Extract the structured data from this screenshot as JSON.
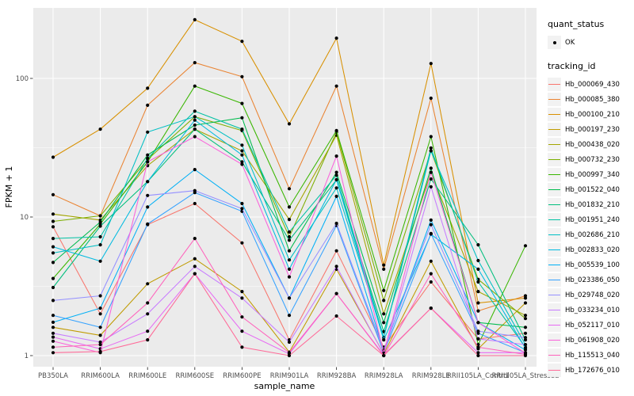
{
  "chart_data": {
    "type": "line",
    "title": "",
    "xlabel": "sample_name",
    "ylabel": "FPKM + 1",
    "y_scale": "log10",
    "ylim": [
      1,
      265
    ],
    "y_ticks": [
      1,
      10,
      100
    ],
    "y_minor_ticks": [
      3.1623,
      31.623
    ],
    "grid": "on",
    "legend_position": "right",
    "legend": {
      "quant_status": {
        "title": "quant_status",
        "items": [
          {
            "label": "OK",
            "marker": "point",
            "color": "#000000"
          }
        ]
      },
      "tracking_id": {
        "title": "tracking_id"
      }
    },
    "categories": [
      "PB350LA",
      "RRIM600LA",
      "RRIM600LE",
      "RRIM600SE",
      "RRIM600PE",
      "RRIM901LA",
      "RRIM928BA",
      "RRIM928LA",
      "RRIM928LE",
      "RRII105LA_Control",
      "RRII105LA_Stressed"
    ],
    "series": [
      {
        "name": "Hb_000069_430",
        "color": "#F8766D",
        "values": [
          8.5,
          2.0,
          8.8,
          12.5,
          6.5,
          1.3,
          5.7,
          1.15,
          3.4,
          1.32,
          1.45
        ]
      },
      {
        "name": "Hb_000085_380",
        "color": "#EA8331",
        "values": [
          14.5,
          10.2,
          64,
          130,
          103,
          16,
          88,
          4.2,
          72,
          2.1,
          2.7
        ]
      },
      {
        "name": "Hb_000100_210",
        "color": "#D89000",
        "values": [
          27,
          43,
          85,
          265,
          185,
          47,
          195,
          4.5,
          128,
          2.4,
          2.6
        ]
      },
      {
        "name": "Hb_000197_230",
        "color": "#C09B00",
        "values": [
          1.6,
          1.4,
          3.3,
          5.0,
          2.9,
          1.06,
          4.2,
          1.03,
          4.8,
          1.12,
          2.4
        ]
      },
      {
        "name": "Hb_000438_020",
        "color": "#A3A500",
        "values": [
          10.5,
          9.5,
          23.5,
          43,
          30,
          9.6,
          39,
          2.0,
          21,
          2.9,
          1.95
        ]
      },
      {
        "name": "Hb_000732_230",
        "color": "#7CAE00",
        "values": [
          9.3,
          10.2,
          26,
          53,
          42,
          7.2,
          41,
          2.5,
          30,
          3.55,
          1.85
        ]
      },
      {
        "name": "Hb_000997_340",
        "color": "#39B600",
        "values": [
          3.6,
          8.9,
          25,
          88,
          66,
          11.8,
          42,
          2.95,
          38,
          1.2,
          6.2
        ]
      },
      {
        "name": "Hb_001522_040",
        "color": "#00BB4E",
        "values": [
          4.7,
          9.2,
          28,
          46,
          52,
          5.7,
          21,
          1.73,
          22.5,
          1.73,
          1.6
        ]
      },
      {
        "name": "Hb_001832_210",
        "color": "#00BF7D",
        "values": [
          3.1,
          8.6,
          18,
          43,
          25,
          6.8,
          18.5,
          1.49,
          18.8,
          6.3,
          1.3
        ]
      },
      {
        "name": "Hb_001951_240",
        "color": "#00C1A3",
        "values": [
          7.0,
          7.2,
          26.5,
          58,
          43,
          7.8,
          20,
          1.35,
          31.5,
          3.4,
          1.15
        ]
      },
      {
        "name": "Hb_002686_210",
        "color": "#00BFC4",
        "values": [
          5.5,
          6.3,
          41,
          53,
          33,
          4.9,
          16.2,
          1.35,
          30,
          4.85,
          1.2
        ]
      },
      {
        "name": "Hb_002833_020",
        "color": "#00BAE0",
        "values": [
          6.1,
          4.8,
          18,
          50,
          28,
          4.2,
          18.6,
          1.3,
          7.5,
          4.2,
          1.13
        ]
      },
      {
        "name": "Hb_005539_100",
        "color": "#00B0F6",
        "values": [
          1.74,
          2.2,
          11.8,
          22,
          12.5,
          2.6,
          14.1,
          1.08,
          9.5,
          1.73,
          1.1
        ]
      },
      {
        "name": "Hb_023386_050",
        "color": "#35A2FF",
        "values": [
          1.95,
          1.6,
          8.9,
          15,
          11,
          1.95,
          8.7,
          1.05,
          7.6,
          1.45,
          1.05
        ]
      },
      {
        "name": "Hb_029748_020",
        "color": "#9590FF",
        "values": [
          2.5,
          2.7,
          14.3,
          15.5,
          11.5,
          2.6,
          9.0,
          1.1,
          8.8,
          1.5,
          1.35
        ]
      },
      {
        "name": "Hb_033234_010",
        "color": "#C77CFF",
        "values": [
          1.45,
          1.25,
          2.0,
          4.4,
          2.6,
          1.25,
          4.4,
          1.02,
          16.5,
          1.32,
          1.2
        ]
      },
      {
        "name": "Hb_052117_010",
        "color": "#E76BF3",
        "values": [
          1.36,
          1.12,
          1.5,
          3.9,
          1.5,
          1.03,
          2.8,
          1.01,
          2.2,
          1.05,
          1.05
        ]
      },
      {
        "name": "Hb_061908_020",
        "color": "#FA62DB",
        "values": [
          1.27,
          1.05,
          25,
          38,
          24,
          3.7,
          27.5,
          1.04,
          21,
          1.73,
          1.04
        ]
      },
      {
        "name": "Hb_115513_040",
        "color": "#FF62BC",
        "values": [
          1.15,
          1.2,
          2.4,
          7.0,
          1.9,
          1.05,
          2.8,
          1.0,
          3.9,
          1.15,
          1.02
        ]
      },
      {
        "name": "Hb_172676_010",
        "color": "#FF6A98",
        "values": [
          1.05,
          1.07,
          1.3,
          3.9,
          1.15,
          1.0,
          1.93,
          1.0,
          2.2,
          1.0,
          1.0
        ]
      }
    ]
  },
  "colors": {
    "panel_bg": "#EBEBEB",
    "gridline": "#FFFFFF",
    "legend_key_bg": "#F2F2F2",
    "point": "#000000",
    "tick_mark": "#333333",
    "tick_label": "#4D4D4D",
    "axis_title": "#000000"
  }
}
